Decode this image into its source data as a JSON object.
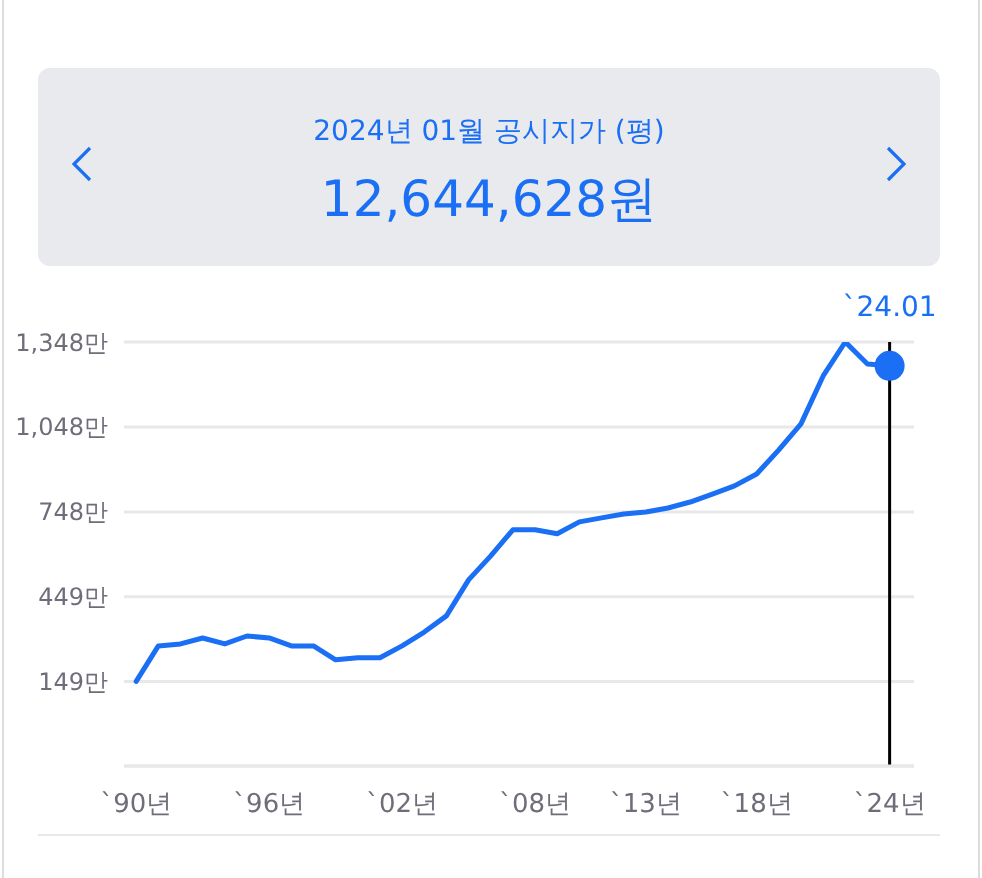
{
  "chart_data": {
    "type": "line",
    "title": "2024년 01월 공시지가 (평)",
    "subtitle": "12,644,628원",
    "categories": [
      "`90년",
      null,
      null,
      null,
      null,
      null,
      "`96년",
      null,
      null,
      null,
      null,
      null,
      "`02년",
      null,
      null,
      null,
      null,
      null,
      "`08년",
      null,
      null,
      null,
      null,
      "`13년",
      null,
      null,
      null,
      null,
      "`18년",
      null,
      null,
      null,
      null,
      null,
      "`24년"
    ],
    "series": [
      {
        "color": "#1a6ff5",
        "values": [
          150,
          275,
          282,
          303,
          282,
          310,
          303,
          275,
          275,
          226,
          233,
          233,
          275,
          324,
          381,
          508,
          593,
          685,
          685,
          671,
          713,
          727,
          741,
          748,
          762,
          783,
          811,
          840,
          882,
          967,
          1059,
          1228,
          1348,
          1270,
          1264
        ]
      }
    ],
    "ylim": [
      -149,
      1348
    ],
    "yticks": [
      {
        "value": 149,
        "label": "149만"
      },
      {
        "value": 449,
        "label": "449만"
      },
      {
        "value": 748,
        "label": "748만"
      },
      {
        "value": 1048,
        "label": "1,048만"
      },
      {
        "value": 1348,
        "label": "1,348만"
      }
    ],
    "grid": "y",
    "marker": "none",
    "line_style": "solid",
    "legend": false,
    "ref_lines": [
      {
        "axis": "x",
        "value": "`24년",
        "color": "#000000"
      }
    ],
    "annotations": [
      {
        "text": "`24.01",
        "x": "`24년",
        "y": 1264
      }
    ]
  }
}
